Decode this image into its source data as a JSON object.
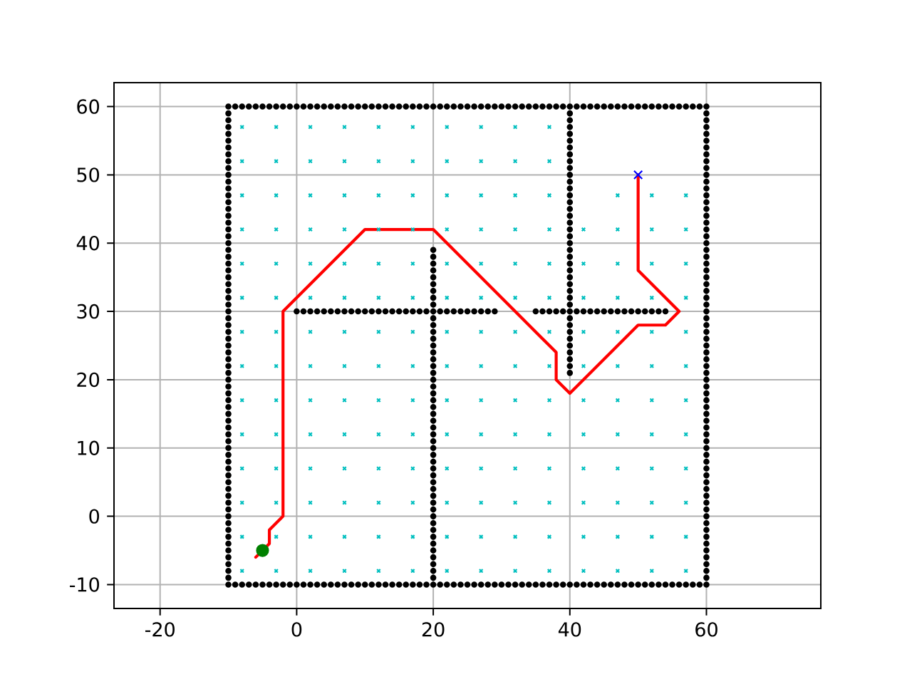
{
  "chart_data": {
    "type": "scatter",
    "xlim": [
      -26.75,
      76.75
    ],
    "ylim": [
      -13.5,
      63.5
    ],
    "xticks": [
      -20,
      0,
      20,
      40,
      60
    ],
    "yticks": [
      -10,
      0,
      10,
      20,
      30,
      40,
      50,
      60
    ],
    "grid": true,
    "series": [
      {
        "color": "#000000",
        "marker": "circle",
        "x": [
          -10,
          -9,
          -8,
          -7,
          -6,
          -5,
          -4,
          -3,
          -2,
          -1,
          0,
          1,
          2,
          3,
          4,
          5,
          6,
          7,
          8,
          9,
          10,
          11,
          12,
          13,
          14,
          15,
          16,
          17,
          18,
          19,
          20,
          21,
          22,
          23,
          24,
          25,
          26,
          27,
          28,
          29,
          30,
          31,
          32,
          33,
          34,
          35,
          36,
          37,
          38,
          39,
          40,
          41,
          42,
          43,
          44,
          45,
          46,
          47,
          48,
          49,
          50,
          51,
          52,
          53,
          54,
          55,
          56,
          57,
          58,
          59,
          60,
          60,
          60,
          60,
          60,
          60,
          60,
          60,
          60,
          60,
          60,
          60,
          60,
          60,
          60,
          60,
          60,
          60,
          60,
          60,
          60,
          60,
          60,
          60,
          60,
          60,
          60,
          60,
          60,
          60,
          60,
          60,
          60,
          60,
          60,
          60,
          60,
          60,
          60,
          60,
          60,
          60,
          60,
          60,
          60,
          60,
          60,
          60,
          60,
          60,
          60,
          60,
          60,
          60,
          60,
          60,
          60,
          60,
          60,
          60,
          60,
          60,
          60,
          60,
          60,
          60,
          60,
          60,
          60,
          60,
          60,
          -10,
          -9,
          -8,
          -7,
          -6,
          -5,
          -4,
          -3,
          -2,
          -1,
          0,
          1,
          2,
          3,
          4,
          5,
          6,
          7,
          8,
          9,
          10,
          11,
          12,
          13,
          14,
          15,
          16,
          17,
          18,
          19,
          20,
          21,
          22,
          23,
          24,
          25,
          26,
          27,
          28,
          29,
          30,
          31,
          32,
          33,
          34,
          35,
          36,
          37,
          38,
          39,
          40,
          41,
          42,
          43,
          44,
          45,
          46,
          47,
          48,
          49,
          50,
          51,
          52,
          53,
          54,
          55,
          56,
          57,
          58,
          59,
          -10,
          -10,
          -10,
          -10,
          -10,
          -10,
          -10,
          -10,
          -10,
          -10,
          -10,
          -10,
          -10,
          -10,
          -10,
          -10,
          -10,
          -10,
          -10,
          -10,
          -10,
          -10,
          -10,
          -10,
          -10,
          -10,
          -10,
          -10,
          -10,
          -10,
          -10,
          -10,
          -10,
          -10,
          -10,
          -10,
          -10,
          -10,
          -10,
          -10,
          -10,
          -10,
          -10,
          -10,
          -10,
          -10,
          -10,
          -10,
          -10,
          -10,
          -10,
          -10,
          -10,
          -10,
          -10,
          -10,
          -10,
          -10,
          -10,
          -10,
          -10,
          -10,
          -10,
          -10,
          -10,
          -10,
          -10,
          -10,
          -10,
          20,
          20,
          20,
          20,
          20,
          20,
          20,
          20,
          20,
          20,
          20,
          20,
          20,
          20,
          20,
          20,
          20,
          20,
          20,
          20,
          20,
          20,
          20,
          20,
          20,
          20,
          20,
          20,
          20,
          20,
          20,
          20,
          20,
          20,
          20,
          20,
          20,
          20,
          20,
          20,
          20,
          20,
          20,
          20,
          20,
          20,
          20,
          20,
          20,
          0,
          1,
          2,
          3,
          4,
          5,
          6,
          7,
          8,
          9,
          10,
          11,
          12,
          13,
          14,
          15,
          16,
          17,
          18,
          19,
          21,
          22,
          23,
          24,
          25,
          26,
          27,
          28,
          29,
          35,
          36,
          37,
          38,
          39,
          41,
          42,
          43,
          44,
          45,
          46,
          47,
          48,
          49,
          50,
          51,
          52,
          53,
          54,
          40,
          40,
          40,
          40,
          40,
          40,
          40,
          40,
          40,
          40,
          40,
          40,
          40,
          40,
          40,
          40,
          40,
          40,
          40,
          40,
          40,
          40,
          40,
          40,
          40,
          40,
          40,
          40,
          40,
          40,
          40,
          40,
          40,
          40,
          40,
          40,
          40,
          40,
          40
        ],
        "values": [
          -10,
          -10,
          -10,
          -10,
          -10,
          -10,
          -10,
          -10,
          -10,
          -10,
          -10,
          -10,
          -10,
          -10,
          -10,
          -10,
          -10,
          -10,
          -10,
          -10,
          -10,
          -10,
          -10,
          -10,
          -10,
          -10,
          -10,
          -10,
          -10,
          -10,
          -10,
          -10,
          -10,
          -10,
          -10,
          -10,
          -10,
          -10,
          -10,
          -10,
          -10,
          -10,
          -10,
          -10,
          -10,
          -10,
          -10,
          -10,
          -10,
          -10,
          -10,
          -10,
          -10,
          -10,
          -10,
          -10,
          -10,
          -10,
          -10,
          -10,
          -10,
          -10,
          -10,
          -10,
          -10,
          -10,
          -10,
          -10,
          -10,
          -10,
          -10,
          -9,
          -8,
          -7,
          -6,
          -5,
          -4,
          -3,
          -2,
          -1,
          0,
          1,
          2,
          3,
          4,
          5,
          6,
          7,
          8,
          9,
          10,
          11,
          12,
          13,
          14,
          15,
          16,
          17,
          18,
          19,
          20,
          21,
          22,
          23,
          24,
          25,
          26,
          27,
          28,
          29,
          30,
          31,
          32,
          33,
          34,
          35,
          36,
          37,
          38,
          39,
          40,
          41,
          42,
          43,
          44,
          45,
          46,
          47,
          48,
          49,
          50,
          51,
          52,
          53,
          54,
          55,
          56,
          57,
          58,
          59,
          60,
          60,
          60,
          60,
          60,
          60,
          60,
          60,
          60,
          60,
          60,
          60,
          60,
          60,
          60,
          60,
          60,
          60,
          60,
          60,
          60,
          60,
          60,
          60,
          60,
          60,
          60,
          60,
          60,
          60,
          60,
          60,
          60,
          60,
          60,
          60,
          60,
          60,
          60,
          60,
          60,
          60,
          60,
          60,
          60,
          60,
          60,
          60,
          60,
          60,
          60,
          60,
          60,
          60,
          60,
          60,
          60,
          60,
          60,
          60,
          60,
          60,
          60,
          60,
          60,
          60,
          60,
          60,
          60,
          60,
          60,
          -9,
          -8,
          -7,
          -6,
          -5,
          -4,
          -3,
          -2,
          -1,
          0,
          1,
          2,
          3,
          4,
          5,
          6,
          7,
          8,
          9,
          10,
          11,
          12,
          13,
          14,
          15,
          16,
          17,
          18,
          19,
          20,
          21,
          22,
          23,
          24,
          25,
          26,
          27,
          28,
          29,
          30,
          31,
          32,
          33,
          34,
          35,
          36,
          37,
          38,
          39,
          40,
          41,
          42,
          43,
          44,
          45,
          46,
          47,
          48,
          49,
          50,
          51,
          52,
          53,
          54,
          55,
          56,
          57,
          58,
          59,
          -9,
          -8,
          -7,
          -6,
          -5,
          -4,
          -3,
          -2,
          -1,
          0,
          1,
          2,
          3,
          4,
          5,
          6,
          7,
          8,
          9,
          10,
          11,
          12,
          13,
          14,
          15,
          16,
          17,
          18,
          19,
          20,
          21,
          22,
          23,
          24,
          25,
          26,
          27,
          28,
          29,
          30,
          31,
          32,
          33,
          34,
          35,
          36,
          37,
          38,
          39,
          30,
          30,
          30,
          30,
          30,
          30,
          30,
          30,
          30,
          30,
          30,
          30,
          30,
          30,
          30,
          30,
          30,
          30,
          30,
          30,
          30,
          30,
          30,
          30,
          30,
          30,
          30,
          30,
          30,
          30,
          30,
          30,
          30,
          30,
          30,
          30,
          30,
          30,
          30,
          30,
          30,
          30,
          30,
          30,
          30,
          30,
          30,
          30,
          21,
          22,
          23,
          24,
          25,
          26,
          27,
          28,
          29,
          30,
          31,
          32,
          33,
          34,
          35,
          36,
          37,
          38,
          39,
          40,
          41,
          42,
          43,
          44,
          45,
          46,
          47,
          48,
          49,
          50,
          51,
          52,
          53,
          54,
          55,
          56,
          57,
          58,
          59
        ]
      },
      {
        "color": "#00bfbf",
        "marker": "cross",
        "x": [
          -8,
          -3,
          2,
          7,
          12,
          17,
          22,
          27,
          32,
          37,
          42,
          47,
          52,
          57,
          -8,
          -3,
          2,
          7,
          12,
          17,
          22,
          27,
          32,
          37,
          42,
          47,
          52,
          57,
          -8,
          -3,
          2,
          7,
          12,
          17,
          22,
          27,
          32,
          37,
          42,
          47,
          52,
          57,
          -8,
          -3,
          2,
          7,
          12,
          17,
          22,
          27,
          32,
          37,
          42,
          47,
          52,
          57,
          -8,
          -3,
          2,
          7,
          12,
          17,
          22,
          27,
          32,
          37,
          42,
          47,
          52,
          57,
          -8,
          -3,
          2,
          7,
          12,
          17,
          22,
          27,
          32,
          37,
          42,
          47,
          52,
          57,
          -8,
          -3,
          2,
          7,
          12,
          17,
          22,
          27,
          32,
          37,
          42,
          47,
          52,
          57,
          -8,
          -3,
          2,
          7,
          12,
          17,
          22,
          27,
          32,
          37,
          42,
          47,
          52,
          57,
          -8,
          -3,
          2,
          7,
          12,
          17,
          22,
          27,
          32,
          37,
          42,
          47,
          52,
          57,
          -8,
          -3,
          2,
          7,
          12,
          17,
          22,
          27,
          32,
          37,
          42,
          47,
          52,
          57,
          -8,
          -3,
          2,
          7,
          12,
          17,
          22,
          27,
          32,
          37,
          42,
          47,
          52,
          57,
          -8,
          -3,
          2,
          7,
          12,
          17,
          22,
          27,
          32,
          37,
          47,
          52,
          57,
          -8,
          -3,
          2,
          7,
          12,
          17,
          22,
          27,
          32,
          37,
          -8,
          -3,
          2,
          7,
          12,
          17,
          22,
          27,
          32,
          37
        ],
        "values": [
          -8,
          -8,
          -8,
          -8,
          -8,
          -8,
          -8,
          -8,
          -8,
          -8,
          -8,
          -8,
          -8,
          -8,
          -3,
          -3,
          -3,
          -3,
          -3,
          -3,
          -3,
          -3,
          -3,
          -3,
          -3,
          -3,
          -3,
          -3,
          2,
          2,
          2,
          2,
          2,
          2,
          2,
          2,
          2,
          2,
          2,
          2,
          2,
          2,
          7,
          7,
          7,
          7,
          7,
          7,
          7,
          7,
          7,
          7,
          7,
          7,
          7,
          7,
          12,
          12,
          12,
          12,
          12,
          12,
          12,
          12,
          12,
          12,
          12,
          12,
          12,
          12,
          17,
          17,
          17,
          17,
          17,
          17,
          17,
          17,
          17,
          17,
          17,
          17,
          17,
          17,
          22,
          22,
          22,
          22,
          22,
          22,
          22,
          22,
          22,
          22,
          22,
          22,
          22,
          22,
          27,
          27,
          27,
          27,
          27,
          27,
          27,
          27,
          27,
          27,
          27,
          27,
          27,
          27,
          32,
          32,
          32,
          32,
          32,
          32,
          32,
          32,
          32,
          32,
          32,
          32,
          32,
          32,
          37,
          37,
          37,
          37,
          37,
          37,
          37,
          37,
          37,
          37,
          37,
          37,
          37,
          37,
          42,
          42,
          42,
          42,
          42,
          42,
          42,
          42,
          42,
          42,
          42,
          42,
          42,
          42,
          47,
          47,
          47,
          47,
          47,
          47,
          47,
          47,
          47,
          47,
          47,
          47,
          47,
          52,
          52,
          52,
          52,
          52,
          52,
          52,
          52,
          52,
          52,
          57,
          57,
          57,
          57,
          57,
          57,
          57,
          57,
          57,
          57
        ]
      },
      {
        "color": "#008000",
        "marker": "circle",
        "x": [
          -5
        ],
        "values": [
          -5
        ]
      },
      {
        "color": "#0000ff",
        "marker": "cross",
        "x": [
          50
        ],
        "values": [
          50
        ]
      },
      {
        "type": "line",
        "color": "#ff0000",
        "marker": "none",
        "line_style": "solid",
        "x": [
          50,
          50,
          56,
          54,
          50,
          40,
          38,
          38,
          20,
          10,
          -2,
          -2,
          -4,
          -4,
          -6
        ],
        "values": [
          50,
          36,
          30,
          28,
          28,
          18,
          20,
          24,
          42,
          42,
          30,
          0,
          -2,
          -4,
          -6
        ]
      }
    ]
  }
}
